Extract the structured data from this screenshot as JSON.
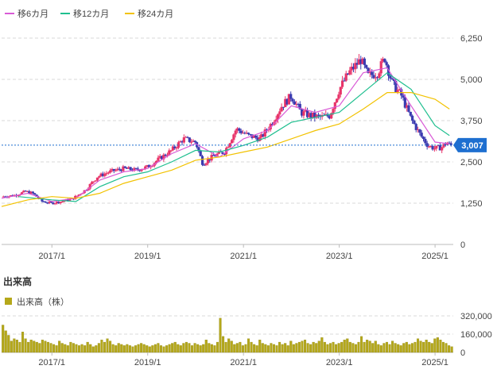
{
  "price_chart": {
    "legend": [
      {
        "label": "移6カ月",
        "color": "#d95ad6"
      },
      {
        "label": "移12カ月",
        "color": "#1fbf8f"
      },
      {
        "label": "移24カ月",
        "color": "#f2c200"
      }
    ],
    "current_price": {
      "label": "3,007",
      "value": 3007,
      "color": "#1e6fd0"
    },
    "candle_up_color": "#e8356a",
    "candle_down_color": "#3b3bb0"
  },
  "volume_chart": {
    "title": "出来高",
    "legend_label": "出来高（株）",
    "bar_color": "#b5a81a"
  },
  "chart_data": [
    {
      "type": "candlestick",
      "x_tick_labels": [
        "2017/1",
        "2019/1",
        "2021/1",
        "2023/1",
        "2025/1"
      ],
      "x_ticks": [
        2017.0,
        2019.0,
        2021.0,
        2023.0,
        2025.0
      ],
      "y_tick_labels": [
        "6,250",
        "5,000",
        "3,750",
        "2,500",
        "1,250",
        "0"
      ],
      "y_ticks": [
        6250,
        5000,
        3750,
        2500,
        1250,
        0
      ],
      "ylim": [
        0,
        6250
      ],
      "grid": true,
      "legend_position": "top-left",
      "close_anchors": [
        [
          2015.95,
          1450
        ],
        [
          2016.2,
          1480
        ],
        [
          2016.45,
          1600
        ],
        [
          2016.6,
          1550
        ],
        [
          2016.8,
          1300
        ],
        [
          2017.0,
          1250
        ],
        [
          2017.2,
          1300
        ],
        [
          2017.45,
          1400
        ],
        [
          2017.7,
          1650
        ],
        [
          2017.95,
          2050
        ],
        [
          2018.2,
          2200
        ],
        [
          2018.5,
          2300
        ],
        [
          2018.75,
          2250
        ],
        [
          2019.0,
          2350
        ],
        [
          2019.25,
          2600
        ],
        [
          2019.5,
          2850
        ],
        [
          2019.75,
          3200
        ],
        [
          2020.0,
          3100
        ],
        [
          2020.15,
          2450
        ],
        [
          2020.4,
          2700
        ],
        [
          2020.6,
          2800
        ],
        [
          2020.85,
          3500
        ],
        [
          2021.1,
          3300
        ],
        [
          2021.35,
          3200
        ],
        [
          2021.6,
          3700
        ],
        [
          2021.8,
          4200
        ],
        [
          2022.0,
          4500
        ],
        [
          2022.2,
          4000
        ],
        [
          2022.4,
          3900
        ],
        [
          2022.6,
          3850
        ],
        [
          2022.8,
          3900
        ],
        [
          2023.0,
          4700
        ],
        [
          2023.2,
          5200
        ],
        [
          2023.45,
          5600
        ],
        [
          2023.6,
          5100
        ],
        [
          2023.8,
          5200
        ],
        [
          2023.95,
          5650
        ],
        [
          2024.1,
          4900
        ],
        [
          2024.3,
          4500
        ],
        [
          2024.5,
          3800
        ],
        [
          2024.7,
          3300
        ],
        [
          2024.85,
          3000
        ],
        [
          2025.0,
          2900
        ],
        [
          2025.15,
          2950
        ],
        [
          2025.25,
          3100
        ],
        [
          2025.3,
          3007
        ]
      ],
      "moving_averages": [
        {
          "name": "移6カ月",
          "points": [
            [
              2015.95,
              1400
            ],
            [
              2016.5,
              1550
            ],
            [
              2017.0,
              1300
            ],
            [
              2017.5,
              1400
            ],
            [
              2018.0,
              1950
            ],
            [
              2018.5,
              2200
            ],
            [
              2019.0,
              2300
            ],
            [
              2019.5,
              2750
            ],
            [
              2020.0,
              3050
            ],
            [
              2020.5,
              2650
            ],
            [
              2021.0,
              3200
            ],
            [
              2021.5,
              3450
            ],
            [
              2022.0,
              4200
            ],
            [
              2022.5,
              4000
            ],
            [
              2023.0,
              4200
            ],
            [
              2023.5,
              5200
            ],
            [
              2024.0,
              5350
            ],
            [
              2024.5,
              4200
            ],
            [
              2025.0,
              3100
            ],
            [
              2025.3,
              3050
            ]
          ]
        },
        {
          "name": "移12カ月",
          "points": [
            [
              2016.3,
              1450
            ],
            [
              2017.0,
              1350
            ],
            [
              2017.5,
              1300
            ],
            [
              2018.0,
              1750
            ],
            [
              2018.5,
              2050
            ],
            [
              2019.0,
              2200
            ],
            [
              2019.5,
              2500
            ],
            [
              2020.0,
              2850
            ],
            [
              2020.5,
              2800
            ],
            [
              2021.0,
              3000
            ],
            [
              2021.5,
              3250
            ],
            [
              2022.0,
              3700
            ],
            [
              2022.5,
              3850
            ],
            [
              2023.0,
              4000
            ],
            [
              2023.5,
              4600
            ],
            [
              2024.0,
              5200
            ],
            [
              2024.5,
              4700
            ],
            [
              2025.0,
              3600
            ],
            [
              2025.3,
              3300
            ]
          ]
        },
        {
          "name": "移24カ月",
          "points": [
            [
              2015.95,
              1150
            ],
            [
              2016.5,
              1350
            ],
            [
              2017.0,
              1450
            ],
            [
              2017.5,
              1400
            ],
            [
              2018.0,
              1550
            ],
            [
              2018.5,
              1850
            ],
            [
              2019.0,
              2050
            ],
            [
              2019.5,
              2250
            ],
            [
              2020.0,
              2550
            ],
            [
              2020.5,
              2650
            ],
            [
              2021.0,
              2800
            ],
            [
              2021.5,
              2950
            ],
            [
              2022.0,
              3200
            ],
            [
              2022.5,
              3450
            ],
            [
              2023.0,
              3650
            ],
            [
              2023.5,
              4100
            ],
            [
              2024.0,
              4600
            ],
            [
              2024.5,
              4600
            ],
            [
              2025.0,
              4400
            ],
            [
              2025.3,
              4100
            ]
          ]
        }
      ]
    },
    {
      "type": "bar",
      "series_name": "出来高（株）",
      "y_tick_labels": [
        "320,000",
        "160,000",
        "0"
      ],
      "y_ticks": [
        320000,
        160000,
        0
      ],
      "ylim": [
        0,
        320000
      ],
      "x_tick_labels": [
        "2017/1",
        "2019/1",
        "2021/1",
        "2023/1",
        "2025/1"
      ],
      "x_ticks": [
        2017.0,
        2019.0,
        2021.0,
        2023.0,
        2025.0
      ],
      "values": [
        240000,
        190000,
        150000,
        100000,
        120000,
        110000,
        90000,
        180000,
        120000,
        90000,
        110000,
        100000,
        90000,
        80000,
        110000,
        100000,
        90000,
        80000,
        70000,
        60000,
        100000,
        80000,
        70000,
        60000,
        90000,
        80000,
        70000,
        60000,
        70000,
        60000,
        90000,
        70000,
        50000,
        60000,
        80000,
        110000,
        90000,
        120000,
        100000,
        70000,
        60000,
        80000,
        70000,
        60000,
        70000,
        60000,
        50000,
        60000,
        70000,
        80000,
        70000,
        60000,
        50000,
        60000,
        70000,
        80000,
        60000,
        50000,
        60000,
        70000,
        80000,
        90000,
        70000,
        60000,
        80000,
        90000,
        80000,
        60000,
        80000,
        70000,
        60000,
        70000,
        110000,
        80000,
        70000,
        60000,
        90000,
        300000,
        140000,
        90000,
        120000,
        100000,
        70000,
        80000,
        90000,
        60000,
        70000,
        120000,
        90000,
        70000,
        60000,
        110000,
        80000,
        70000,
        60000,
        80000,
        70000,
        60000,
        90000,
        70000,
        80000,
        60000,
        100000,
        70000,
        80000,
        90000,
        100000,
        110000,
        80000,
        70000,
        90000,
        80000,
        100000,
        130000,
        90000,
        70000,
        80000,
        90000,
        70000,
        80000,
        90000,
        110000,
        120000,
        90000,
        80000,
        70000,
        90000,
        140000,
        90000,
        110000,
        100000,
        80000,
        100000,
        70000,
        60000,
        80000,
        90000,
        70000,
        100000,
        80000,
        70000,
        60000,
        80000,
        90000,
        70000,
        80000,
        90000,
        120000,
        100000,
        90000,
        110000,
        90000,
        80000,
        120000,
        130000,
        110000,
        90000,
        80000,
        60000,
        50000
      ]
    }
  ]
}
